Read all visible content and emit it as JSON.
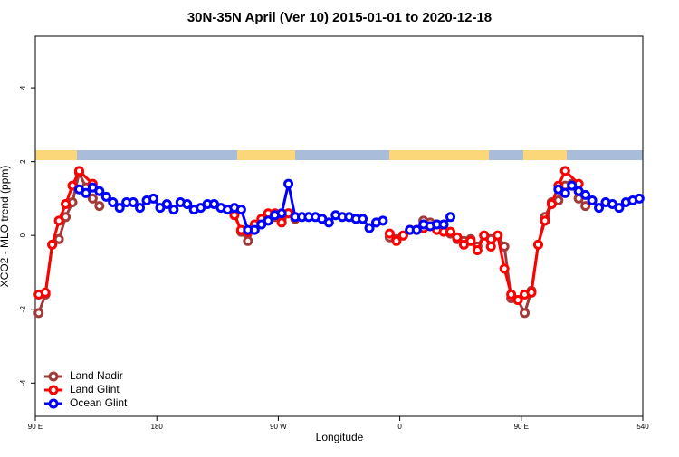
{
  "chart_data": {
    "type": "line",
    "title": "30N-35N April (Ver 10)   2015-01-01 to 2020-12-18",
    "xlabel": "Longitude",
    "ylabel": "XCO2 - MLO trend (ppm)",
    "xlim": [
      90,
      540
    ],
    "xticks": [
      {
        "value": 90,
        "label": "90 E"
      },
      180,
      {
        "value": 270,
        "label": "90 W"
      },
      {
        "value": 360,
        "label": "0"
      },
      {
        "value": 450,
        "label": "90 E"
      },
      540
    ],
    "ylim": [
      -4.9,
      5.4
    ],
    "yticks": [
      -4,
      -2,
      0,
      2,
      4
    ],
    "legend": "bottom-left",
    "series": [
      {
        "name": "Land Nadir",
        "color": "#a33a3a",
        "x": [
          92.5,
          97.5,
          102.5,
          107.5,
          112.5,
          117.5,
          122.5,
          127.5,
          132.5,
          137.5,
          187.5,
          237.5,
          242.5,
          247.5,
          252.5,
          257.5,
          262.5,
          267.5,
          272.5,
          277.5,
          282.5,
          317.5,
          352.5,
          357.5,
          362.5,
          367.5,
          372.5,
          377.5,
          382.5,
          387.5,
          392.5,
          397.5,
          402.5,
          407.5,
          412.5,
          417.5,
          422.5,
          427.5,
          432.5,
          437.5,
          442.5,
          447.5,
          452.5,
          457.5,
          462.5,
          467.5,
          472.5,
          477.5,
          482.5,
          487.5,
          492.5,
          497.5
        ],
        "values": [
          -2.1,
          -1.6,
          -0.25,
          -0.1,
          0.5,
          0.9,
          1.7,
          1.3,
          1.0,
          0.8,
          null,
          0.6,
          0.1,
          -0.15,
          0.25,
          0.4,
          0.55,
          0.5,
          0.45,
          0.6,
          0.45,
          null,
          -0.05,
          -0.1,
          0.0,
          0.15,
          0.15,
          0.4,
          0.35,
          0.3,
          0.15,
          0.05,
          -0.1,
          -0.15,
          -0.1,
          -0.3,
          0.0,
          -0.1,
          0.0,
          -0.3,
          -1.7,
          -1.75,
          -2.1,
          -1.5,
          -0.25,
          0.5,
          0.9,
          0.95,
          1.35,
          1.4,
          1.0,
          0.8
        ]
      },
      {
        "name": "Land Glint",
        "color": "#ff0000",
        "x": [
          92.5,
          97.5,
          102.5,
          107.5,
          112.5,
          117.5,
          122.5,
          132.5,
          187.5,
          237.5,
          242.5,
          247.5,
          252.5,
          257.5,
          262.5,
          267.5,
          272.5,
          277.5,
          282.5,
          317.5,
          352.5,
          357.5,
          362.5,
          367.5,
          372.5,
          377.5,
          382.5,
          387.5,
          392.5,
          397.5,
          402.5,
          407.5,
          412.5,
          417.5,
          422.5,
          427.5,
          432.5,
          437.5,
          442.5,
          447.5,
          452.5,
          457.5,
          462.5,
          467.5,
          472.5,
          477.5,
          482.5,
          492.5
        ],
        "values": [
          -1.6,
          -1.55,
          -0.25,
          0.4,
          0.85,
          1.35,
          1.75,
          1.4,
          null,
          0.55,
          0.15,
          0.1,
          0.3,
          0.45,
          0.6,
          0.6,
          0.35,
          0.6,
          0.5,
          null,
          0.05,
          -0.15,
          0.0,
          0.15,
          0.15,
          0.2,
          0.25,
          0.15,
          0.1,
          0.1,
          -0.05,
          -0.25,
          -0.15,
          -0.4,
          0.0,
          -0.3,
          0.0,
          -0.9,
          -1.6,
          -1.75,
          -1.6,
          -1.55,
          -0.25,
          0.4,
          0.85,
          1.35,
          1.75,
          1.4
        ]
      },
      {
        "name": "Ocean Glint",
        "color": "#0000ff",
        "x": [
          122.5,
          127.5,
          132.5,
          137.5,
          142.5,
          147.5,
          152.5,
          157.5,
          162.5,
          167.5,
          172.5,
          177.5,
          182.5,
          187.5,
          192.5,
          197.5,
          202.5,
          207.5,
          212.5,
          217.5,
          222.5,
          227.5,
          232.5,
          237.5,
          242.5,
          247.5,
          252.5,
          257.5,
          262.5,
          267.5,
          272.5,
          277.5,
          282.5,
          287.5,
          292.5,
          297.5,
          302.5,
          307.5,
          312.5,
          317.5,
          322.5,
          327.5,
          332.5,
          337.5,
          342.5,
          347.5,
          360,
          367.5,
          372.5,
          377.5,
          382.5,
          387.5,
          392.5,
          397.5,
          437.5,
          477.5,
          482.5,
          487.5,
          492.5,
          497.5,
          502.5,
          507.5,
          512.5,
          517.5,
          522.5,
          527.5,
          532.5,
          537.5
        ],
        "values": [
          1.25,
          1.15,
          1.3,
          1.2,
          1.05,
          0.9,
          0.75,
          0.9,
          0.9,
          0.75,
          0.95,
          1.0,
          0.75,
          0.85,
          0.7,
          0.9,
          0.85,
          0.7,
          0.75,
          0.85,
          0.85,
          0.75,
          0.7,
          0.75,
          0.7,
          0.15,
          0.15,
          0.3,
          0.4,
          0.55,
          0.6,
          1.4,
          0.5,
          0.5,
          0.5,
          0.5,
          0.45,
          0.35,
          0.55,
          0.5,
          0.5,
          0.45,
          0.45,
          0.2,
          0.35,
          0.4,
          null,
          0.15,
          0.15,
          0.3,
          0.25,
          0.3,
          0.3,
          0.5,
          null,
          1.25,
          1.15,
          1.35,
          1.2,
          1.1,
          0.95,
          0.75,
          0.9,
          0.85,
          0.75,
          0.9,
          0.95,
          1.0
        ]
      }
    ]
  }
}
